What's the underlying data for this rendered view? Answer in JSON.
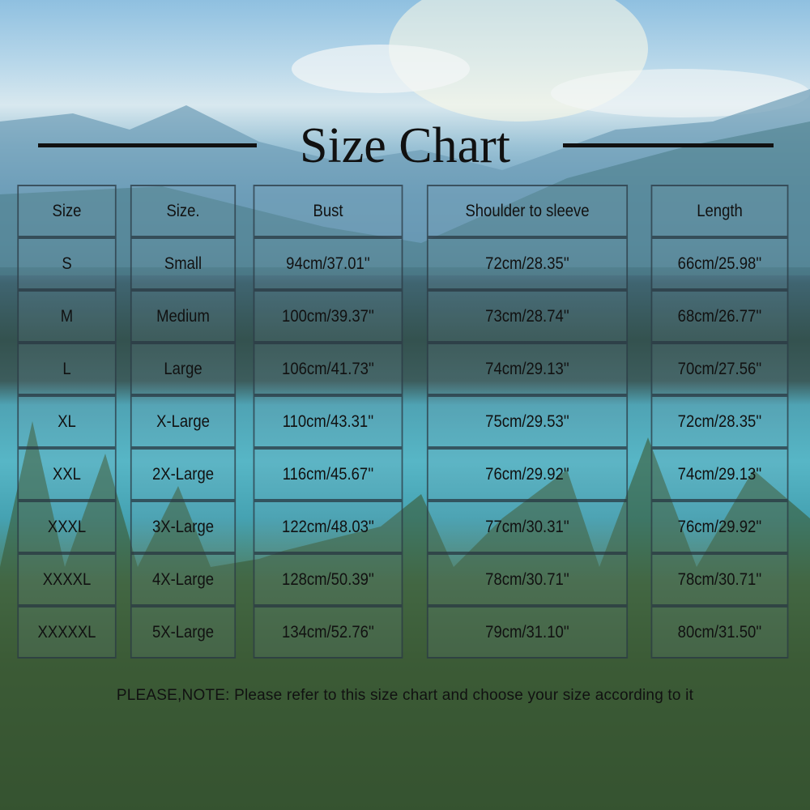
{
  "title": "Size Chart",
  "chart_data": {
    "type": "table",
    "title": "Size Chart",
    "columns": [
      "Size",
      "Size.",
      "Bust",
      "Shoulder to sleeve",
      "Length"
    ],
    "rows": [
      [
        "S",
        "Small",
        "94cm/37.01''",
        "72cm/28.35''",
        "66cm/25.98''"
      ],
      [
        "M",
        "Medium",
        "100cm/39.37''",
        "73cm/28.74''",
        "68cm/26.77''"
      ],
      [
        "L",
        "Large",
        "106cm/41.73''",
        "74cm/29.13''",
        "70cm/27.56''"
      ],
      [
        "XL",
        "X-Large",
        "110cm/43.31''",
        "75cm/29.53''",
        "72cm/28.35''"
      ],
      [
        "XXL",
        "2X-Large",
        "116cm/45.67''",
        "76cm/29.92''",
        "74cm/29.13''"
      ],
      [
        "XXXL",
        "3X-Large",
        "122cm/48.03''",
        "77cm/30.31''",
        "76cm/29.92''"
      ],
      [
        "XXXXL",
        "4X-Large",
        "128cm/50.39''",
        "78cm/30.71''",
        "78cm/30.71''"
      ],
      [
        "XXXXXL",
        "5X-Large",
        "134cm/52.76''",
        "79cm/31.10''",
        "80cm/31.50''"
      ]
    ]
  },
  "note": "PLEASE,NOTE: Please refer to this size chart and choose your size according to it"
}
